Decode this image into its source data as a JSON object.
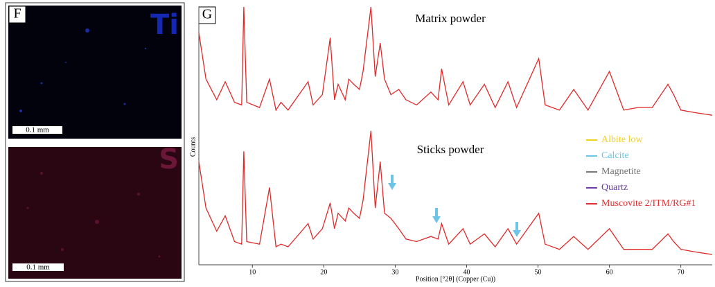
{
  "panels": {
    "f": {
      "label": "F",
      "top_element": "Ti",
      "bottom_element": "S",
      "top_scale": "0.1 mm",
      "bottom_scale": "0.1 mm"
    },
    "g": {
      "label": "G"
    }
  },
  "chart_data": {
    "type": "line",
    "x_label": "Position [°2θ] (Copper (Cu))",
    "y_label": "Counts",
    "annotations": [
      "Matrix powder",
      "Sticks powder"
    ],
    "x": [
      2.5,
      3.5,
      5,
      6.2,
      7.5,
      8.5,
      8.8,
      9.2,
      11,
      12.4,
      13.3,
      14,
      15,
      17.8,
      18.5,
      19.8,
      20.9,
      21.5,
      22,
      23,
      23.5,
      24.2,
      25,
      25.5,
      26.6,
      27.2,
      27.9,
      28.5,
      29.4,
      30.5,
      31.5,
      33,
      35,
      36,
      36.5,
      37.5,
      39.5,
      40.5,
      42.5,
      44,
      45.8,
      47,
      50.1,
      51,
      53,
      55,
      57,
      60,
      62,
      64,
      66,
      68.2,
      69,
      70,
      72,
      74.4
    ],
    "series": [
      {
        "color": "#e02828",
        "values": [
          90,
          72,
          64,
          71,
          63,
          62,
          100,
          63,
          61,
          72,
          60,
          63,
          60,
          71,
          62,
          66,
          88,
          64,
          70,
          64,
          72,
          70,
          68,
          75,
          100,
          73,
          86,
          72,
          66,
          68,
          64,
          62,
          67,
          64,
          76,
          62,
          71,
          62,
          70,
          61,
          71,
          61,
          80,
          62,
          60,
          68,
          60,
          75,
          60,
          61,
          61,
          70,
          66,
          60,
          59,
          58
        ]
      },
      {
        "color": "#e02828",
        "values": [
          40,
          22,
          13,
          19,
          9,
          8,
          44,
          9,
          8,
          30,
          7,
          8,
          7,
          16,
          10,
          14,
          24,
          14,
          20,
          17,
          22,
          20,
          18,
          25,
          52,
          22,
          40,
          20,
          18,
          14,
          10,
          9,
          11,
          10,
          16,
          8,
          14,
          8,
          12,
          7,
          14,
          8,
          20,
          8,
          6,
          11,
          6,
          14,
          6,
          6,
          6,
          12,
          9,
          6,
          5,
          4
        ]
      }
    ],
    "legend_entries": [
      {
        "name": "Albite low",
        "color": "#f2d020"
      },
      {
        "name": "Calcite",
        "color": "#6cc4e6"
      },
      {
        "name": "Magnetite",
        "color": "#777777"
      },
      {
        "name": "Quartz",
        "color": "#6a3aa6"
      },
      {
        "name": "Muscovite 2/ITM/RG#1",
        "color": "#e03030"
      }
    ],
    "xlim": [
      2.5,
      74.4
    ],
    "ylim": [
      0,
      100
    ],
    "xticks": [
      10,
      20,
      30,
      40,
      50,
      60,
      70
    ]
  }
}
